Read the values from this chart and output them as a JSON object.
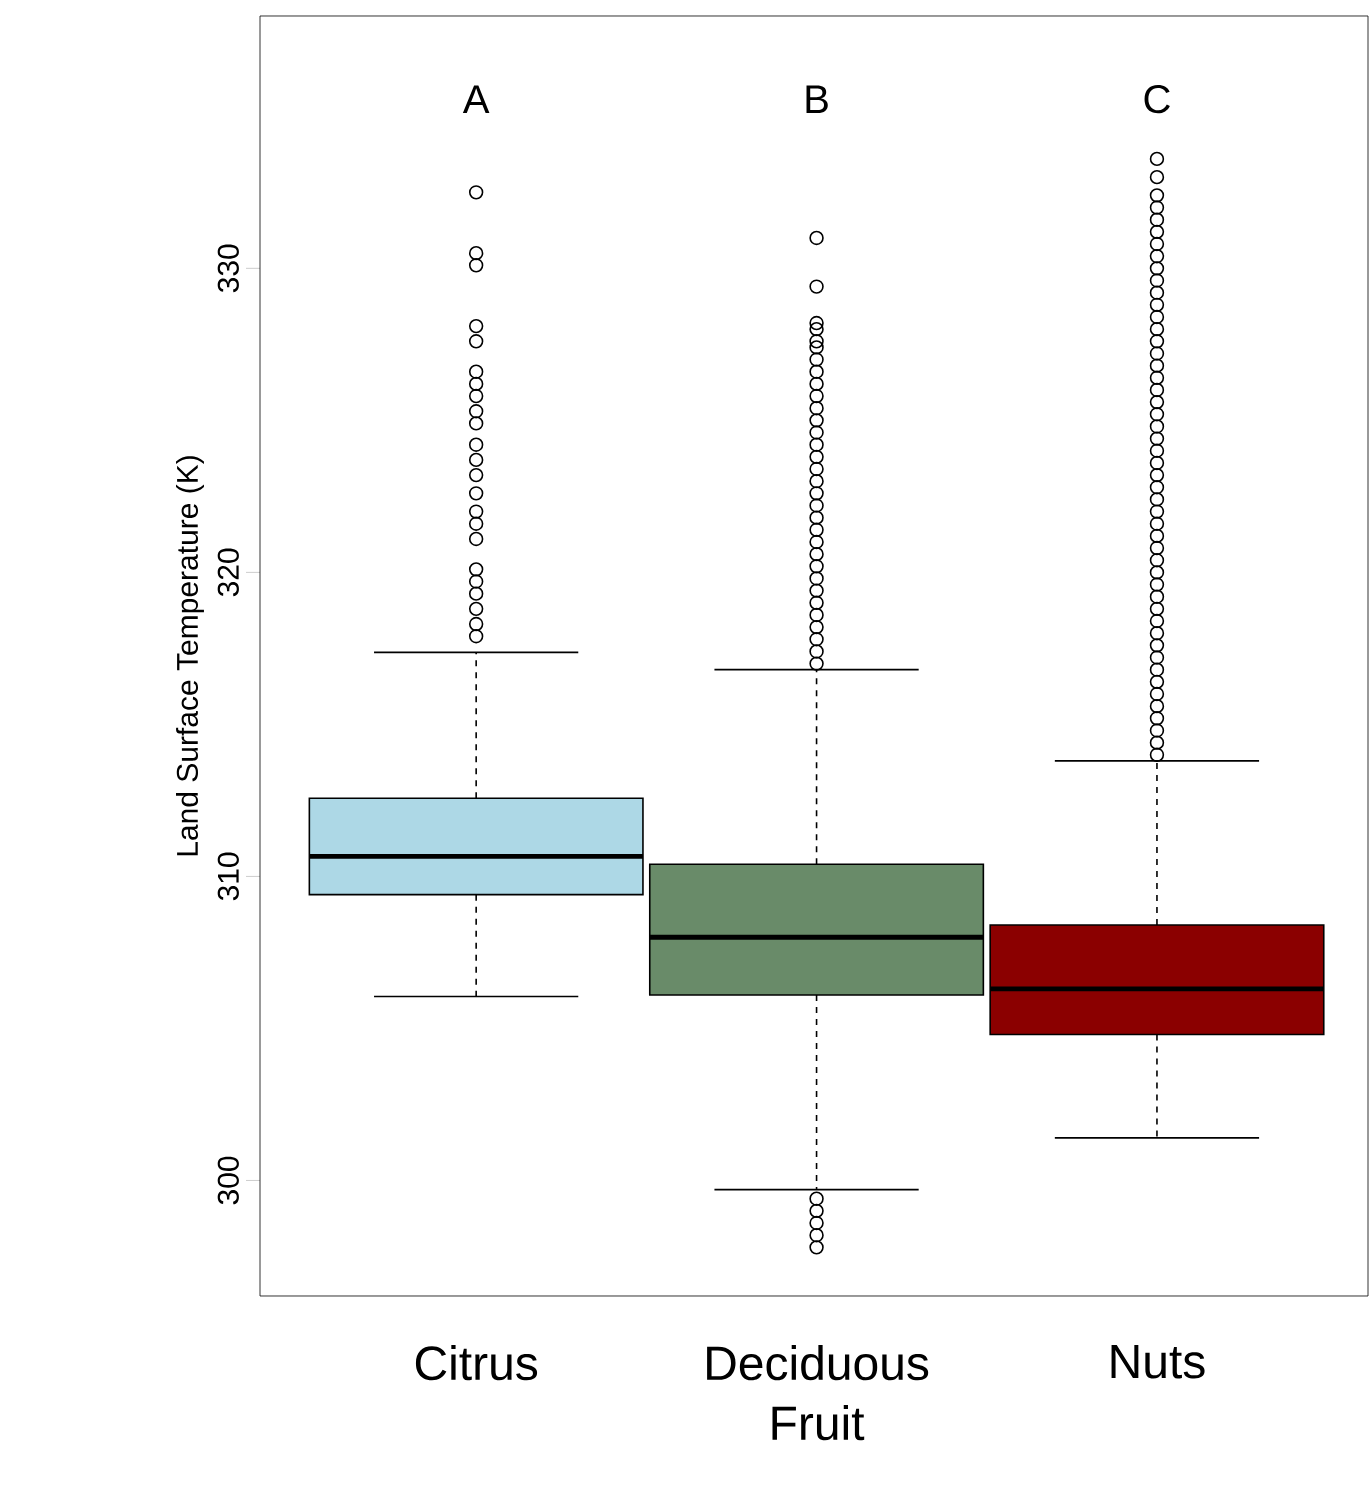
{
  "chart_data": {
    "type": "box",
    "ylabel": "Land Surface Temperature (K)",
    "categories": [
      "Citrus",
      "Deciduous Fruit",
      "Nuts"
    ],
    "colors": [
      "#add8e6",
      "#698b69",
      "#8b0000"
    ],
    "boxes": [
      {
        "low": 306.05,
        "q1": 309.4,
        "median": 310.66,
        "q3": 312.57,
        "high": 317.37,
        "outliers": [
          317.9,
          318.3,
          318.8,
          319.3,
          319.7,
          320.1,
          321.1,
          321.6,
          322.0,
          322.6,
          323.2,
          323.7,
          324.2,
          324.9,
          325.3,
          325.8,
          326.2,
          326.6,
          327.6,
          328.1,
          330.1,
          330.5,
          332.5
        ]
      },
      {
        "low": 299.7,
        "q1": 306.1,
        "median": 308.0,
        "q3": 310.4,
        "high": 316.8,
        "outliers": [
          297.8,
          298.2,
          298.6,
          299.0,
          299.4,
          317.0,
          317.4,
          317.8,
          318.2,
          318.6,
          319.0,
          319.4,
          319.8,
          320.2,
          320.6,
          321.0,
          321.4,
          321.8,
          322.2,
          322.6,
          323.0,
          323.4,
          323.8,
          324.2,
          324.6,
          325.0,
          325.4,
          325.8,
          326.2,
          326.6,
          327.0,
          327.4,
          327.6,
          328.0,
          328.2,
          329.4,
          331.0
        ]
      },
      {
        "low": 301.4,
        "q1": 304.8,
        "median": 306.3,
        "q3": 308.4,
        "high": 313.8,
        "outliers": [
          314.0,
          314.4,
          314.8,
          315.2,
          315.6,
          316.0,
          316.4,
          316.8,
          317.2,
          317.6,
          318.0,
          318.4,
          318.8,
          319.2,
          319.6,
          320.0,
          320.4,
          320.8,
          321.2,
          321.6,
          322.0,
          322.4,
          322.8,
          323.2,
          323.6,
          324.0,
          324.4,
          324.8,
          325.2,
          325.6,
          326.0,
          326.4,
          326.8,
          327.2,
          327.6,
          328.0,
          328.4,
          328.8,
          329.2,
          329.6,
          330.0,
          330.4,
          330.8,
          331.2,
          331.6,
          332.0,
          332.4,
          333.0,
          333.6
        ]
      }
    ],
    "ylim": [
      296.2,
      338.3
    ],
    "yticks": [
      300,
      310,
      320,
      330
    ],
    "annotations": [
      "A",
      "B",
      "C"
    ]
  }
}
